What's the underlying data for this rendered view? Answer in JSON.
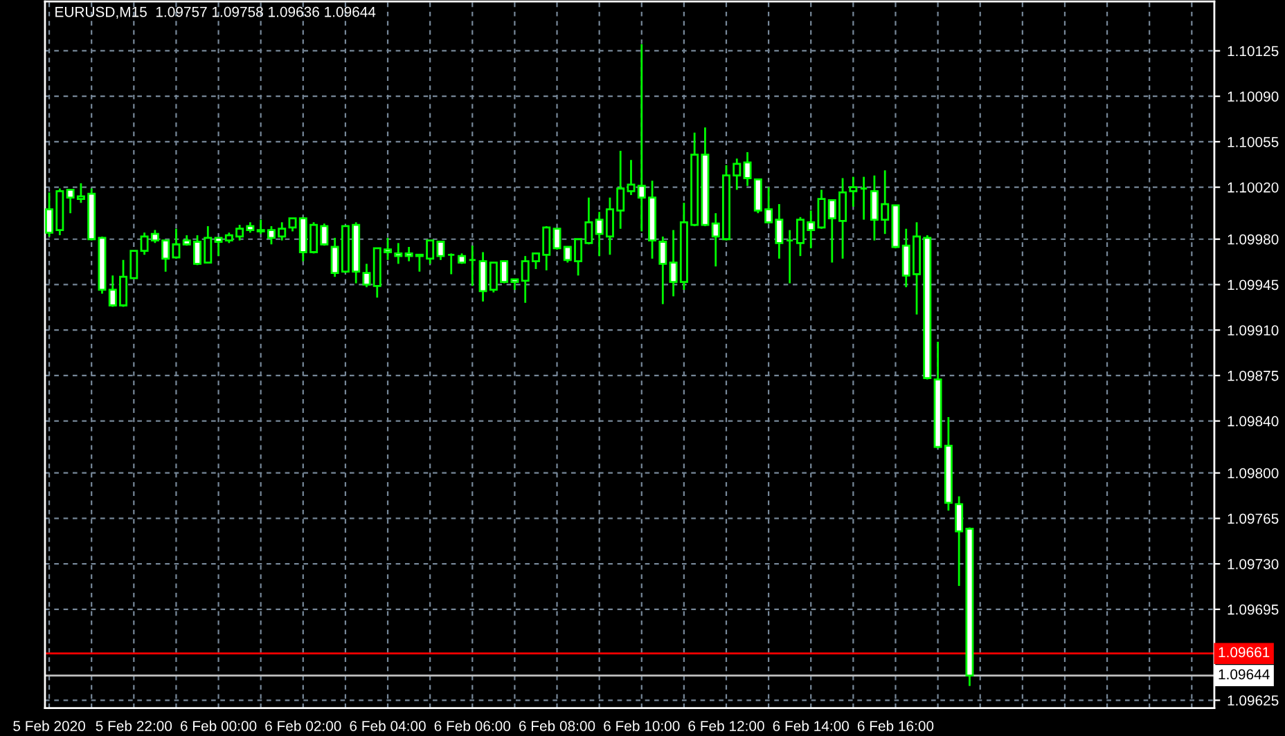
{
  "chart_data": {
    "type": "candlestick",
    "title": "EURUSD,M15  1.09757 1.09758 1.09636 1.09644",
    "color": "#00ff00",
    "x": [
      "2020-02-05T20:00",
      "2020-02-05T20:15",
      "2020-02-05T20:30",
      "2020-02-05T20:45",
      "2020-02-05T21:00",
      "2020-02-05T21:15",
      "2020-02-05T21:30",
      "2020-02-05T21:45",
      "2020-02-05T22:00",
      "2020-02-05T22:15",
      "2020-02-05T22:30",
      "2020-02-05T22:45",
      "2020-02-05T23:00",
      "2020-02-05T23:15",
      "2020-02-05T23:30",
      "2020-02-05T23:45",
      "2020-02-06T00:00",
      "2020-02-06T00:15",
      "2020-02-06T00:30",
      "2020-02-06T00:45",
      "2020-02-06T01:00",
      "2020-02-06T01:15",
      "2020-02-06T01:30",
      "2020-02-06T01:45",
      "2020-02-06T02:00",
      "2020-02-06T02:15",
      "2020-02-06T02:30",
      "2020-02-06T02:45",
      "2020-02-06T03:00",
      "2020-02-06T03:15",
      "2020-02-06T03:30",
      "2020-02-06T03:45",
      "2020-02-06T04:00",
      "2020-02-06T04:15",
      "2020-02-06T04:30",
      "2020-02-06T04:45",
      "2020-02-06T05:00",
      "2020-02-06T05:15",
      "2020-02-06T05:30",
      "2020-02-06T05:45",
      "2020-02-06T06:00",
      "2020-02-06T06:15",
      "2020-02-06T06:30",
      "2020-02-06T06:45",
      "2020-02-06T07:00",
      "2020-02-06T07:15",
      "2020-02-06T07:30",
      "2020-02-06T07:45",
      "2020-02-06T08:00",
      "2020-02-06T08:15",
      "2020-02-06T08:30",
      "2020-02-06T08:45",
      "2020-02-06T09:00",
      "2020-02-06T09:15",
      "2020-02-06T09:30",
      "2020-02-06T09:45",
      "2020-02-06T10:00",
      "2020-02-06T10:15",
      "2020-02-06T10:30",
      "2020-02-06T10:45",
      "2020-02-06T11:00",
      "2020-02-06T11:15",
      "2020-02-06T11:30",
      "2020-02-06T11:45",
      "2020-02-06T12:00",
      "2020-02-06T12:15",
      "2020-02-06T12:30",
      "2020-02-06T12:45",
      "2020-02-06T13:00",
      "2020-02-06T13:15",
      "2020-02-06T13:30",
      "2020-02-06T13:45",
      "2020-02-06T14:00",
      "2020-02-06T14:15",
      "2020-02-06T14:30",
      "2020-02-06T14:45",
      "2020-02-06T15:00",
      "2020-02-06T15:15",
      "2020-02-06T15:30",
      "2020-02-06T15:45",
      "2020-02-06T16:00",
      "2020-02-06T16:15",
      "2020-02-06T16:30",
      "2020-02-06T16:45",
      "2020-02-06T17:00",
      "2020-02-06T17:15",
      "2020-02-06T17:30",
      "2020-02-06T17:45"
    ],
    "ohlc": [
      [
        1.10003,
        1.10016,
        1.09982,
        1.09985
      ],
      [
        1.09987,
        1.10019,
        1.09983,
        1.10017
      ],
      [
        1.10018,
        1.10018,
        1.1,
        1.10012
      ],
      [
        1.10011,
        1.10023,
        1.10008,
        1.10013
      ],
      [
        1.10015,
        1.10019,
        1.09979,
        1.0998
      ],
      [
        1.09981,
        1.09982,
        1.09938,
        1.09941
      ],
      [
        1.09941,
        1.09952,
        1.09928,
        1.09929
      ],
      [
        1.09929,
        1.09964,
        1.09928,
        1.09951
      ],
      [
        1.0995,
        1.09971,
        1.0995,
        1.09971
      ],
      [
        1.09971,
        1.09985,
        1.09968,
        1.09982
      ],
      [
        1.09984,
        1.09987,
        1.09977,
        1.09979
      ],
      [
        1.09979,
        1.09979,
        1.09955,
        1.09965
      ],
      [
        1.09966,
        1.09988,
        1.09965,
        1.09976
      ],
      [
        1.09979,
        1.09983,
        1.09975,
        1.09976
      ],
      [
        1.09978,
        1.09983,
        1.0996,
        1.09961
      ],
      [
        1.09962,
        1.0999,
        1.09962,
        1.09981
      ],
      [
        1.09981,
        1.09981,
        1.09967,
        1.09978
      ],
      [
        1.09979,
        1.09985,
        1.09977,
        1.09983
      ],
      [
        1.09982,
        1.09991,
        1.09979,
        1.09988
      ],
      [
        1.0999,
        1.09993,
        1.09985,
        1.09987
      ],
      [
        1.09986,
        1.09995,
        1.09984,
        1.09987
      ],
      [
        1.09987,
        1.0999,
        1.09976,
        1.09981
      ],
      [
        1.09982,
        1.09993,
        1.09979,
        1.09988
      ],
      [
        1.09989,
        1.09996,
        1.09986,
        1.09996
      ],
      [
        1.09996,
        1.09997,
        1.09963,
        1.0997
      ],
      [
        1.0997,
        1.09993,
        1.09969,
        1.09991
      ],
      [
        1.0999,
        1.09992,
        1.09975,
        1.09976
      ],
      [
        1.09974,
        1.09981,
        1.09951,
        1.09954
      ],
      [
        1.09955,
        1.0999,
        1.09954,
        1.0999
      ],
      [
        1.09991,
        1.09993,
        1.09946,
        1.09955
      ],
      [
        1.09954,
        1.09961,
        1.09943,
        1.09945
      ],
      [
        1.09944,
        1.09973,
        1.09935,
        1.09973
      ],
      [
        1.09972,
        1.09981,
        1.09964,
        1.0997
      ],
      [
        1.09969,
        1.09977,
        1.09961,
        1.09967
      ],
      [
        1.09969,
        1.09974,
        1.09963,
        1.09967
      ],
      [
        1.09967,
        1.09968,
        1.09955,
        1.09968
      ],
      [
        1.09965,
        1.09979,
        1.09961,
        1.09979
      ],
      [
        1.09978,
        1.09978,
        1.09964,
        1.09967
      ],
      [
        1.09968,
        1.09969,
        1.09953,
        1.09968
      ],
      [
        1.09967,
        1.09969,
        1.09961,
        1.09962
      ],
      [
        1.09964,
        1.09975,
        1.09944,
        1.09964
      ],
      [
        1.09963,
        1.0997,
        1.09932,
        1.0994
      ],
      [
        1.09941,
        1.09962,
        1.09939,
        1.09962
      ],
      [
        1.09963,
        1.09963,
        1.09946,
        1.09947
      ],
      [
        1.09949,
        1.09949,
        1.09941,
        1.09947
      ],
      [
        1.09948,
        1.09967,
        1.09931,
        1.09963
      ],
      [
        1.09963,
        1.09969,
        1.09957,
        1.09969
      ],
      [
        1.09968,
        1.0999,
        1.09956,
        1.09989
      ],
      [
        1.09988,
        1.09988,
        1.09972,
        1.09973
      ],
      [
        1.09974,
        1.09974,
        1.09962,
        1.09964
      ],
      [
        1.09963,
        1.0998,
        1.09952,
        1.0998
      ],
      [
        1.09977,
        1.10012,
        1.09976,
        1.09993
      ],
      [
        1.09995,
        1.10001,
        1.09967,
        1.09984
      ],
      [
        1.09982,
        1.10012,
        1.09968,
        1.10003
      ],
      [
        1.10002,
        1.10048,
        1.09988,
        1.10019
      ],
      [
        1.10017,
        1.10041,
        1.10014,
        1.10022
      ],
      [
        1.10021,
        1.1013,
        1.09986,
        1.10012
      ],
      [
        1.10012,
        1.10025,
        1.09965,
        1.09979
      ],
      [
        1.09978,
        1.09982,
        1.0993,
        1.09961
      ],
      [
        1.09962,
        1.09987,
        1.09936,
        1.09947
      ],
      [
        1.09947,
        1.10008,
        1.09941,
        1.09993
      ],
      [
        1.09991,
        1.10062,
        1.0999,
        1.10045
      ],
      [
        1.10045,
        1.10066,
        1.0999,
        1.09991
      ],
      [
        1.09992,
        1.1,
        1.09959,
        1.09982
      ],
      [
        1.0998,
        1.10037,
        1.09979,
        1.10029
      ],
      [
        1.10029,
        1.10042,
        1.10018,
        1.10038
      ],
      [
        1.10039,
        1.10047,
        1.10021,
        1.10027
      ],
      [
        1.10026,
        1.10026,
        1.1,
        1.10002
      ],
      [
        1.10003,
        1.1002,
        1.09992,
        1.09993
      ],
      [
        1.09995,
        1.10007,
        1.09965,
        1.09977
      ],
      [
        1.09979,
        1.09987,
        1.09946,
        1.09979
      ],
      [
        1.09977,
        1.09997,
        1.09967,
        1.09995
      ],
      [
        1.09993,
        1.10002,
        1.09973,
        1.09987
      ],
      [
        1.09989,
        1.10018,
        1.09988,
        1.10011
      ],
      [
        1.1001,
        1.1001,
        1.09962,
        1.09996
      ],
      [
        1.09994,
        1.10027,
        1.09965,
        1.10016
      ],
      [
        1.10017,
        1.10028,
        1.10005,
        1.1002
      ],
      [
        1.10019,
        1.10028,
        1.09995,
        1.10019
      ],
      [
        1.10017,
        1.10029,
        1.09979,
        1.09995
      ],
      [
        1.09995,
        1.10033,
        1.09984,
        1.10007
      ],
      [
        1.10006,
        1.10006,
        1.09973,
        1.09974
      ],
      [
        1.09975,
        1.09988,
        1.09943,
        1.09952
      ],
      [
        1.09953,
        1.09993,
        1.09922,
        1.09982
      ],
      [
        1.09981,
        1.09983,
        1.09872,
        1.09873
      ],
      [
        1.09872,
        1.09901,
        1.09819,
        1.0982
      ],
      [
        1.09821,
        1.09843,
        1.09771,
        1.09777
      ],
      [
        1.09776,
        1.09782,
        1.09713,
        1.09755
      ],
      [
        1.09757,
        1.09758,
        1.09636,
        1.09644
      ]
    ],
    "xlim": [
      "2020-02-05T19:54",
      "2020-02-06T23:32"
    ],
    "xticks": [
      {
        "value": "2020-02-05T20:00",
        "label": "5 Feb 2020"
      },
      {
        "value": "2020-02-05T21:00",
        "label": null
      },
      {
        "value": "2020-02-05T22:00",
        "label": "5 Feb 22:00"
      },
      {
        "value": "2020-02-05T23:00",
        "label": null
      },
      {
        "value": "2020-02-06T00:00",
        "label": "6 Feb 00:00"
      },
      {
        "value": "2020-02-06T01:00",
        "label": null
      },
      {
        "value": "2020-02-06T02:00",
        "label": "6 Feb 02:00"
      },
      {
        "value": "2020-02-06T03:00",
        "label": null
      },
      {
        "value": "2020-02-06T04:00",
        "label": "6 Feb 04:00"
      },
      {
        "value": "2020-02-06T05:00",
        "label": null
      },
      {
        "value": "2020-02-06T06:00",
        "label": "6 Feb 06:00"
      },
      {
        "value": "2020-02-06T07:00",
        "label": null
      },
      {
        "value": "2020-02-06T08:00",
        "label": "6 Feb 08:00"
      },
      {
        "value": "2020-02-06T09:00",
        "label": null
      },
      {
        "value": "2020-02-06T10:00",
        "label": "6 Feb 10:00"
      },
      {
        "value": "2020-02-06T11:00",
        "label": null
      },
      {
        "value": "2020-02-06T12:00",
        "label": "6 Feb 12:00"
      },
      {
        "value": "2020-02-06T13:00",
        "label": null
      },
      {
        "value": "2020-02-06T14:00",
        "label": "6 Feb 14:00"
      },
      {
        "value": "2020-02-06T15:00",
        "label": null
      },
      {
        "value": "2020-02-06T16:00",
        "label": "6 Feb 16:00"
      },
      {
        "value": "2020-02-06T17:00",
        "label": null
      },
      {
        "value": "2020-02-06T18:00",
        "label": null
      },
      {
        "value": "2020-02-06T19:00",
        "label": null
      },
      {
        "value": "2020-02-06T20:00",
        "label": null
      },
      {
        "value": "2020-02-06T21:00",
        "label": null
      },
      {
        "value": "2020-02-06T22:00",
        "label": null
      },
      {
        "value": "2020-02-06T23:00",
        "label": null
      }
    ],
    "ylim": [
      1.09619,
      1.10163
    ],
    "yticks": [
      {
        "value": 1.10125,
        "label": "1.10125"
      },
      {
        "value": 1.1009,
        "label": "1.10090"
      },
      {
        "value": 1.10055,
        "label": "1.10055"
      },
      {
        "value": 1.1002,
        "label": "1.10020"
      },
      {
        "value": 1.0998,
        "label": "1.09980"
      },
      {
        "value": 1.09945,
        "label": "1.09945"
      },
      {
        "value": 1.0991,
        "label": "1.09910"
      },
      {
        "value": 1.09875,
        "label": "1.09875"
      },
      {
        "value": 1.0984,
        "label": "1.09840"
      },
      {
        "value": 1.098,
        "label": "1.09800"
      },
      {
        "value": 1.09765,
        "label": "1.09765"
      },
      {
        "value": 1.0973,
        "label": "1.09730"
      },
      {
        "value": 1.09695,
        "label": "1.09695"
      },
      {
        "value": 1.09625,
        "label": "1.09625"
      }
    ],
    "ref_lines": [
      {
        "axis": "y",
        "value": 1.09661,
        "label": "1.09661",
        "color": "#ff0000"
      },
      {
        "axis": "y",
        "value": 1.09644,
        "label": "1.09644",
        "color": "#c0c0c0"
      }
    ],
    "grid": true
  }
}
